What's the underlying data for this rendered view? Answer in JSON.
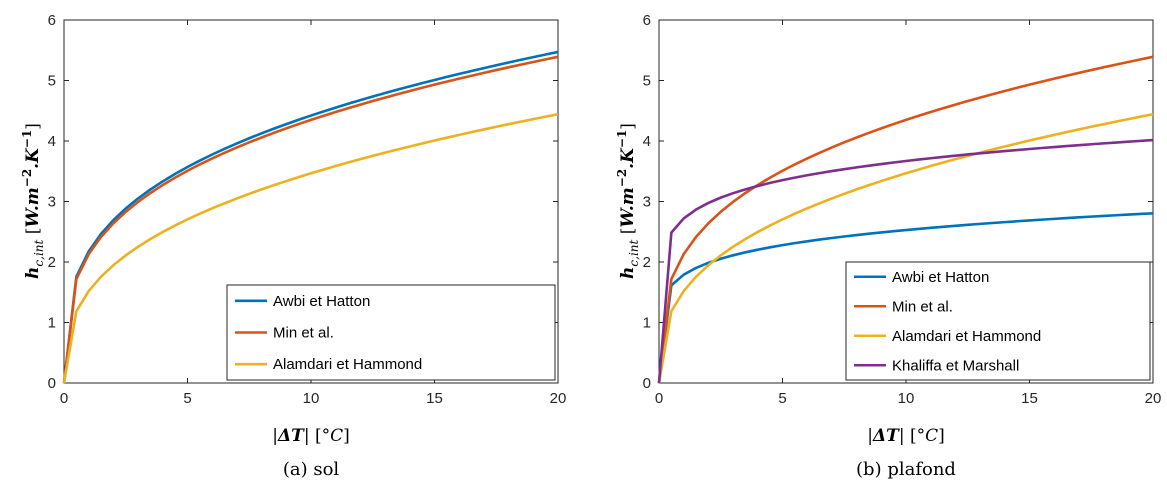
{
  "chart_data": [
    {
      "type": "line",
      "caption": "(a) sol",
      "xlabel": "|ΔT| [°C]",
      "ylabel": "h_c,int [W.m^-2.K^-1]",
      "xlim": [
        0,
        20
      ],
      "ylim": [
        0,
        6
      ],
      "xticks": [
        "0",
        "5",
        "10",
        "15",
        "20"
      ],
      "yticks": [
        "0",
        "1",
        "2",
        "3",
        "4",
        "5",
        "6"
      ],
      "grid": false,
      "legend_position": "bottom-right",
      "series": [
        {
          "name": "Awbi et Hatton",
          "color": "#0072BD",
          "coef": 2.175,
          "exp": 0.308
        },
        {
          "name": "Min et al.",
          "color": "#D95319",
          "coef": 2.13,
          "exp": 0.31
        },
        {
          "name": "Alamdari et Hammond",
          "color": "#EDB120",
          "coef": 1.52,
          "exp": 0.358
        }
      ]
    },
    {
      "type": "line",
      "caption": "(b) plafond",
      "xlabel": "|ΔT| [°C]",
      "ylabel": "h_c,int [W.m^-2.K^-1]",
      "xlim": [
        0,
        20
      ],
      "ylim": [
        0,
        6
      ],
      "xticks": [
        "0",
        "5",
        "10",
        "15",
        "20"
      ],
      "yticks": [
        "0",
        "1",
        "2",
        "3",
        "4",
        "5",
        "6"
      ],
      "grid": false,
      "legend_position": "bottom-right",
      "series": [
        {
          "name": "Awbi et Hatton",
          "color": "#0072BD",
          "coef": 1.79,
          "exp": 0.15
        },
        {
          "name": "Min et al.",
          "color": "#D95319",
          "coef": 2.13,
          "exp": 0.31
        },
        {
          "name": "Alamdari et Hammond",
          "color": "#EDB120",
          "coef": 1.52,
          "exp": 0.358
        },
        {
          "name": "Khaliffa et Marshall",
          "color": "#7E2F8E",
          "coef": 2.72,
          "exp": 0.13
        }
      ]
    }
  ]
}
